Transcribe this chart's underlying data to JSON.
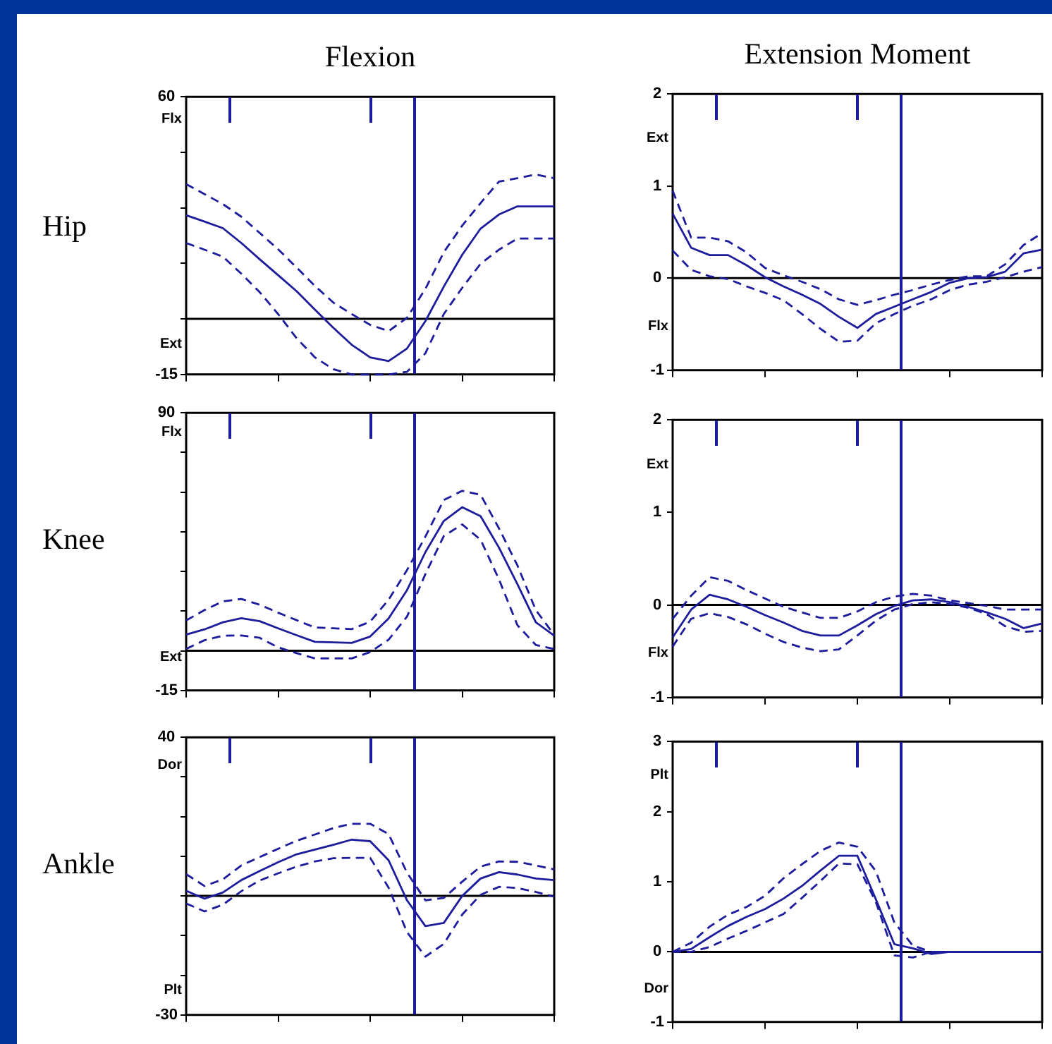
{
  "chart_data": [
    {
      "type": "line",
      "title": "Flexion",
      "ylabel": "Hip",
      "categories": [
        null,
        null,
        null,
        null,
        null,
        null,
        null,
        null,
        null,
        null,
        null,
        null,
        null,
        null,
        null,
        null,
        null,
        null,
        null,
        null,
        null
      ],
      "ylim": [
        -15,
        60
      ],
      "yticks": [
        -15,
        {
          "value": 0,
          "label": null
        },
        {
          "value": 15,
          "label": null
        },
        {
          "value": 30,
          "label": null
        },
        {
          "value": 45,
          "label": null
        },
        60
      ],
      "tick_labels": "y",
      "legend": false,
      "marker": "none",
      "annotations": [
        "Flx",
        "Ext"
      ],
      "ref_lines": [
        {
          "axis": "y",
          "value": 0,
          "color": "#000000"
        }
      ],
      "series": [
        {
          "color": "#1c1c9c",
          "line_style": "solid",
          "values": [
            28,
            26.3,
            24.5,
            20.5,
            16.1,
            11.8,
            7.5,
            2.5,
            -2.4,
            -7,
            -10.4,
            -11.4,
            -8,
            -0.6,
            8.7,
            17.3,
            24.4,
            28.2,
            30.4,
            30.4,
            30.4
          ]
        },
        {
          "color": "#1c1c9c",
          "line_style": "dashed",
          "values": [
            36.4,
            33.7,
            31,
            27.6,
            23.2,
            18.8,
            13.9,
            8.9,
            4.4,
            1.3,
            -1.6,
            -3.3,
            0.3,
            8.1,
            18,
            25.2,
            31.3,
            37.1,
            38,
            39,
            38
          ]
        },
        {
          "color": "#1c1c9c",
          "line_style": "dashed",
          "values": [
            20.5,
            18.7,
            16.8,
            12.2,
            7.2,
            1.3,
            -5.2,
            -10.4,
            -13.6,
            -15,
            -15,
            -15,
            -14.3,
            -9.3,
            1.3,
            8.4,
            14.9,
            18.7,
            21.7,
            21.7,
            21.7
          ]
        }
      ]
    },
    {
      "type": "line",
      "title": "Extension Moment",
      "categories": [
        null,
        null,
        null,
        null,
        null,
        null,
        null,
        null,
        null,
        null,
        null,
        null,
        null,
        null,
        null,
        null,
        null,
        null,
        null,
        null,
        null
      ],
      "ylim": [
        -1,
        2
      ],
      "yticks": [
        -1,
        0,
        1,
        2
      ],
      "tick_labels": "y",
      "legend": false,
      "marker": "none",
      "annotations": [
        "Ext",
        "Flx"
      ],
      "ref_lines": [
        {
          "axis": "y",
          "value": 0,
          "color": "#000000"
        }
      ],
      "series": [
        {
          "color": "#1c1c9c",
          "line_style": "solid",
          "values": [
            0.7,
            0.33,
            0.25,
            0.25,
            0.14,
            0.01,
            -0.09,
            -0.18,
            -0.28,
            -0.42,
            -0.54,
            -0.39,
            -0.31,
            -0.23,
            -0.15,
            -0.05,
            0,
            0.01,
            0.07,
            0.27,
            0.31
          ]
        },
        {
          "color": "#1c1c9c",
          "line_style": "dashed",
          "values": [
            0.95,
            0.44,
            0.44,
            0.4,
            0.28,
            0.11,
            0.03,
            -0.04,
            -0.12,
            -0.23,
            -0.29,
            -0.24,
            -0.18,
            -0.13,
            -0.07,
            -0.02,
            0.02,
            0.02,
            0.15,
            0.36,
            0.49
          ]
        },
        {
          "color": "#1c1c9c",
          "line_style": "dashed",
          "values": [
            0.3,
            0.09,
            0.02,
            -0.01,
            -0.09,
            -0.16,
            -0.24,
            -0.39,
            -0.55,
            -0.69,
            -0.68,
            -0.49,
            -0.39,
            -0.3,
            -0.23,
            -0.13,
            -0.07,
            -0.04,
            0.01,
            0.07,
            0.12
          ]
        }
      ]
    },
    {
      "type": "line",
      "ylabel": "Knee",
      "categories": [
        null,
        null,
        null,
        null,
        null,
        null,
        null,
        null,
        null,
        null,
        null,
        null,
        null,
        null,
        null,
        null,
        null,
        null,
        null,
        null,
        null
      ],
      "ylim": [
        -15,
        90
      ],
      "yticks": [
        -15,
        {
          "value": 0,
          "label": null
        },
        {
          "value": 15,
          "label": null
        },
        {
          "value": 30,
          "label": null
        },
        {
          "value": 45,
          "label": null
        },
        {
          "value": 60,
          "label": null
        },
        {
          "value": 75,
          "label": null
        },
        90
      ],
      "tick_labels": "y",
      "legend": false,
      "marker": "none",
      "annotations": [
        "Flx",
        "Ext"
      ],
      "ref_lines": [
        {
          "axis": "y",
          "value": 0,
          "color": "#000000"
        }
      ],
      "series": [
        {
          "color": "#1c1c9c",
          "line_style": "solid",
          "values": [
            6.1,
            8.1,
            10.8,
            12.3,
            11.2,
            8.5,
            5.9,
            3.4,
            3.2,
            3,
            5.4,
            12.2,
            22.9,
            37.3,
            49.1,
            54.3,
            50.9,
            39,
            25.2,
            10.8,
            5.7
          ]
        },
        {
          "color": "#1c1c9c",
          "line_style": "dashed",
          "values": [
            11.5,
            15.4,
            18.7,
            19.6,
            17.4,
            14.4,
            11.6,
            8.8,
            8.5,
            8.2,
            11,
            19.3,
            30.5,
            43.2,
            57,
            60.5,
            59,
            46.3,
            32.3,
            15.4,
            6
          ]
        },
        {
          "color": "#1c1c9c",
          "line_style": "dashed",
          "values": [
            0.7,
            4,
            5.7,
            5.8,
            4.9,
            1.3,
            -0.9,
            -2.9,
            -2.9,
            -2.9,
            -0.5,
            4.2,
            12.9,
            29,
            43.4,
            47.8,
            42,
            27,
            9.7,
            2.2,
            0.7
          ]
        }
      ]
    },
    {
      "type": "line",
      "categories": [
        null,
        null,
        null,
        null,
        null,
        null,
        null,
        null,
        null,
        null,
        null,
        null,
        null,
        null,
        null,
        null,
        null,
        null,
        null,
        null,
        null
      ],
      "ylim": [
        -1,
        2
      ],
      "yticks": [
        -1,
        0,
        1,
        2
      ],
      "tick_labels": "y",
      "legend": false,
      "marker": "none",
      "annotations": [
        "Ext",
        "Flx"
      ],
      "ref_lines": [
        {
          "axis": "y",
          "value": 0,
          "color": "#000000"
        }
      ],
      "series": [
        {
          "color": "#1c1c9c",
          "line_style": "solid",
          "values": [
            -0.35,
            -0.05,
            0.11,
            0.06,
            -0.02,
            -0.11,
            -0.19,
            -0.28,
            -0.33,
            -0.33,
            -0.22,
            -0.1,
            -0.01,
            0.05,
            0.06,
            0.03,
            -0.02,
            -0.08,
            -0.15,
            -0.25,
            -0.2
          ]
        },
        {
          "color": "#1c1c9c",
          "line_style": "dashed",
          "values": [
            -0.15,
            0.1,
            0.3,
            0.26,
            0.16,
            0.07,
            -0.02,
            -0.08,
            -0.14,
            -0.14,
            -0.07,
            0.03,
            0.09,
            0.12,
            0.1,
            0.05,
            0.02,
            -0.01,
            -0.05,
            -0.05,
            -0.05
          ]
        },
        {
          "color": "#1c1c9c",
          "line_style": "dashed",
          "values": [
            -0.45,
            -0.15,
            -0.09,
            -0.13,
            -0.21,
            -0.31,
            -0.4,
            -0.46,
            -0.5,
            -0.48,
            -0.33,
            -0.17,
            -0.05,
            0.01,
            0.03,
            0.01,
            -0.03,
            -0.1,
            -0.23,
            -0.29,
            -0.28
          ]
        }
      ]
    },
    {
      "type": "line",
      "ylabel": "Ankle",
      "categories": [
        null,
        null,
        null,
        null,
        null,
        null,
        null,
        null,
        null,
        null,
        null,
        null,
        null,
        null,
        null,
        null,
        null,
        null,
        null,
        null,
        null
      ],
      "ylim": [
        -30,
        40
      ],
      "yticks": [
        -30,
        {
          "value": -20,
          "label": null
        },
        {
          "value": -10,
          "label": null
        },
        {
          "value": 0,
          "label": null
        },
        {
          "value": 10,
          "label": null
        },
        {
          "value": 20,
          "label": null
        },
        {
          "value": 30,
          "label": null
        },
        40
      ],
      "tick_labels": "y",
      "legend": false,
      "marker": "none",
      "annotations": [
        "Dor",
        "Plt"
      ],
      "ref_lines": [
        {
          "axis": "y",
          "value": 0,
          "color": "#000000"
        }
      ],
      "series": [
        {
          "color": "#1c1c9c",
          "line_style": "solid",
          "values": [
            1.3,
            -0.7,
            0.9,
            4,
            6.3,
            8.5,
            10.5,
            11.7,
            12.9,
            14.2,
            13.8,
            9,
            -1.1,
            -7.6,
            -6.8,
            0,
            4.4,
            6,
            5.4,
            4.4,
            4
          ]
        },
        {
          "color": "#1c1c9c",
          "line_style": "dashed",
          "values": [
            5.5,
            2.5,
            4.2,
            7.7,
            9.8,
            11.9,
            13.9,
            15.5,
            17.1,
            18.2,
            18.2,
            15.6,
            5.9,
            -1.1,
            -0.5,
            3.6,
            7.4,
            8.7,
            8.6,
            7.7,
            6.7
          ]
        },
        {
          "color": "#1c1c9c",
          "line_style": "dashed",
          "values": [
            -1.9,
            -3.9,
            -2.2,
            1.2,
            3.9,
            5.7,
            7.4,
            8.7,
            9.5,
            9.6,
            9.6,
            2.1,
            -9.1,
            -15.3,
            -12.1,
            -4.7,
            0.3,
            2.3,
            2,
            1,
            -0.2
          ]
        }
      ]
    },
    {
      "type": "line",
      "categories": [
        null,
        null,
        null,
        null,
        null,
        null,
        null,
        null,
        null,
        null,
        null,
        null,
        null,
        null,
        null,
        null,
        null,
        null,
        null,
        null,
        null
      ],
      "ylim": [
        -1,
        3
      ],
      "yticks": [
        -1,
        0,
        1,
        2,
        3
      ],
      "tick_labels": "y",
      "legend": false,
      "marker": "none",
      "annotations": [
        "Plt",
        "Dor"
      ],
      "ref_lines": [
        {
          "axis": "y",
          "value": 0,
          "color": "#000000"
        }
      ],
      "series": [
        {
          "color": "#1c1c9c",
          "line_style": "solid",
          "values": [
            0,
            0.04,
            0.21,
            0.37,
            0.5,
            0.61,
            0.76,
            0.94,
            1.16,
            1.37,
            1.37,
            0.75,
            0.11,
            0.05,
            -0.03,
            0,
            0,
            0,
            0,
            0,
            0
          ]
        },
        {
          "color": "#1c1c9c",
          "line_style": "dashed",
          "values": [
            0,
            0.13,
            0.36,
            0.53,
            0.64,
            0.8,
            1.05,
            1.25,
            1.44,
            1.56,
            1.5,
            1.15,
            0.42,
            0.09,
            0,
            0,
            0,
            0,
            0,
            0,
            0
          ]
        },
        {
          "color": "#1c1c9c",
          "line_style": "dashed",
          "values": [
            0,
            0,
            0.07,
            0.19,
            0.3,
            0.42,
            0.54,
            0.77,
            1.01,
            1.26,
            1.25,
            0.71,
            -0.05,
            -0.08,
            0,
            0,
            0,
            0,
            0,
            0,
            0
          ]
        }
      ]
    }
  ]
}
